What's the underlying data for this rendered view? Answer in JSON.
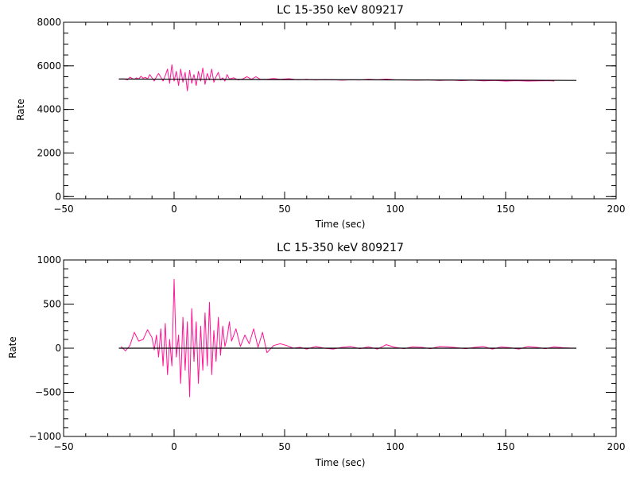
{
  "chart_data": [
    {
      "type": "line",
      "title": "LC 15-350 keV  809217",
      "xlabel": "Time (sec)",
      "ylabel": "Rate",
      "xlim": [
        -50,
        200
      ],
      "ylim": [
        -100,
        8000
      ],
      "x_ticks": [
        "−50",
        "0",
        "50",
        "100",
        "150",
        "200"
      ],
      "y_ticks": [
        "0",
        "2000",
        "4000",
        "6000",
        "8000"
      ],
      "grid": false,
      "colors": {
        "data": "#ff1493",
        "model": "#000000"
      },
      "series": [
        {
          "role": "data",
          "x": [
            -25,
            -23,
            -21,
            -20,
            -19,
            -18,
            -17,
            -16,
            -15,
            -14,
            -13,
            -12,
            -11,
            -10,
            -9,
            -8,
            -7,
            -6,
            -5,
            -4,
            -3,
            -2,
            -1,
            0,
            1,
            2,
            3,
            4,
            5,
            6,
            7,
            8,
            9,
            10,
            11,
            12,
            13,
            14,
            15,
            16,
            17,
            18,
            19,
            20,
            21,
            22,
            23,
            24,
            25,
            27,
            29,
            31,
            33,
            35,
            37,
            39,
            42,
            45,
            48,
            52,
            56,
            60,
            64,
            68,
            72,
            76,
            80,
            84,
            88,
            92,
            96,
            100,
            105,
            110,
            115,
            120,
            125,
            130,
            135,
            140,
            145,
            150,
            155,
            160,
            165,
            170,
            172
          ],
          "y": [
            5380,
            5400,
            5360,
            5480,
            5420,
            5380,
            5450,
            5400,
            5520,
            5430,
            5470,
            5400,
            5600,
            5450,
            5300,
            5500,
            5650,
            5480,
            5300,
            5550,
            5850,
            5200,
            6050,
            5300,
            5750,
            5100,
            5850,
            5250,
            5700,
            4850,
            5800,
            5200,
            5600,
            5100,
            5750,
            5300,
            5900,
            5150,
            5650,
            5350,
            5850,
            5250,
            5500,
            5700,
            5350,
            5450,
            5300,
            5600,
            5400,
            5450,
            5350,
            5400,
            5500,
            5380,
            5500,
            5380,
            5380,
            5420,
            5380,
            5410,
            5360,
            5380,
            5350,
            5370,
            5360,
            5340,
            5360,
            5350,
            5380,
            5360,
            5390,
            5360,
            5350,
            5340,
            5360,
            5330,
            5350,
            5320,
            5340,
            5310,
            5330,
            5300,
            5320,
            5300,
            5310,
            5320,
            5300
          ]
        },
        {
          "role": "model",
          "x": [
            -25,
            0,
            25,
            50,
            100,
            150,
            182
          ],
          "y": [
            5395,
            5385,
            5375,
            5370,
            5355,
            5340,
            5330
          ]
        }
      ]
    },
    {
      "type": "line",
      "title": "LC 15-350 keV  809217",
      "xlabel": "Time (sec)",
      "ylabel": "Rate",
      "xlim": [
        -50,
        200
      ],
      "ylim": [
        -1000,
        1000
      ],
      "x_ticks": [
        "−50",
        "0",
        "50",
        "100",
        "150",
        "200"
      ],
      "y_ticks": [
        "−1000",
        "−500",
        "0",
        "500",
        "1000"
      ],
      "grid": false,
      "colors": {
        "data": "#ff1493",
        "model": "#000000"
      },
      "series": [
        {
          "role": "data",
          "x": [
            -24,
            -22,
            -20,
            -18,
            -16,
            -14,
            -12,
            -10,
            -9,
            -8,
            -7,
            -6,
            -5,
            -4,
            -3,
            -2,
            -1,
            0,
            1,
            2,
            3,
            4,
            5,
            6,
            7,
            8,
            9,
            10,
            11,
            12,
            13,
            14,
            15,
            16,
            17,
            18,
            19,
            20,
            21,
            22,
            23,
            24,
            25,
            26,
            27,
            28,
            30,
            32,
            34,
            36,
            38,
            40,
            42,
            45,
            48,
            51,
            54,
            57,
            60,
            64,
            68,
            72,
            76,
            80,
            84,
            88,
            92,
            96,
            100,
            104,
            108,
            112,
            116,
            120,
            124,
            128,
            132,
            136,
            140,
            144,
            148,
            152,
            156,
            160,
            164,
            168,
            172,
            176,
            180
          ],
          "y": [
            20,
            -30,
            30,
            180,
            80,
            100,
            210,
            120,
            -20,
            150,
            -100,
            220,
            -200,
            280,
            -300,
            100,
            -200,
            780,
            -100,
            150,
            -400,
            350,
            -250,
            300,
            -550,
            450,
            -150,
            300,
            -400,
            250,
            -250,
            400,
            -200,
            520,
            -300,
            200,
            -150,
            350,
            -80,
            250,
            20,
            120,
            300,
            80,
            150,
            220,
            20,
            150,
            50,
            220,
            10,
            180,
            -50,
            30,
            50,
            30,
            0,
            10,
            -10,
            20,
            0,
            -10,
            10,
            20,
            -5,
            15,
            -10,
            40,
            10,
            -5,
            15,
            10,
            -5,
            20,
            15,
            5,
            -5,
            10,
            20,
            -10,
            15,
            5,
            -10,
            20,
            10,
            -5,
            15,
            5,
            0
          ]
        },
        {
          "role": "model",
          "x": [
            -25,
            182
          ],
          "y": [
            0,
            0
          ]
        }
      ]
    }
  ]
}
